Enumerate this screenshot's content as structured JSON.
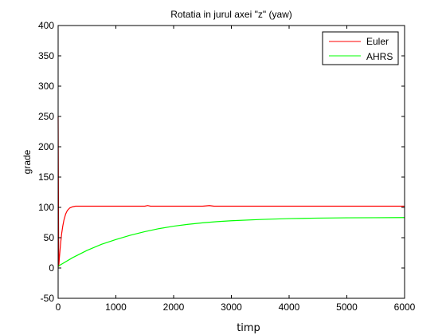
{
  "chart_data": {
    "type": "line",
    "title": "Rotatia in jurul axei \"z\" (yaw)",
    "xlabel": "timp",
    "ylabel": "grade",
    "xlim": [
      0,
      6000
    ],
    "ylim": [
      -50,
      400
    ],
    "xticks": [
      0,
      1000,
      2000,
      3000,
      4000,
      5000,
      6000
    ],
    "yticks": [
      -50,
      0,
      50,
      100,
      150,
      200,
      250,
      300,
      350,
      400
    ],
    "grid": false,
    "legend_position": "top-right",
    "series": [
      {
        "name": "Euler",
        "color": "#ff0000",
        "x": [
          0,
          10,
          20,
          40,
          60,
          80,
          100,
          130,
          160,
          200,
          250,
          300,
          400,
          600,
          800,
          1000,
          1500,
          1550,
          1600,
          2000,
          2500,
          2620,
          2700,
          3000,
          4000,
          5000,
          6000
        ],
        "y": [
          250,
          2,
          15,
          38,
          56,
          69,
          79,
          89,
          95,
          99,
          101,
          102,
          102,
          102,
          102,
          102,
          102,
          103,
          102,
          102,
          102,
          103,
          102,
          102,
          102,
          102,
          102
        ]
      },
      {
        "name": "AHRS",
        "color": "#00ff00",
        "x": [
          0,
          250,
          500,
          750,
          1000,
          1250,
          1500,
          1750,
          2000,
          2250,
          2500,
          2750,
          3000,
          3500,
          4000,
          4500,
          5000,
          5500,
          6000
        ],
        "y": [
          3,
          17,
          29,
          39,
          47,
          54,
          60,
          65,
          69,
          72,
          74.5,
          76.5,
          78,
          80,
          81.5,
          82.3,
          82.8,
          83,
          83.2
        ]
      }
    ]
  }
}
